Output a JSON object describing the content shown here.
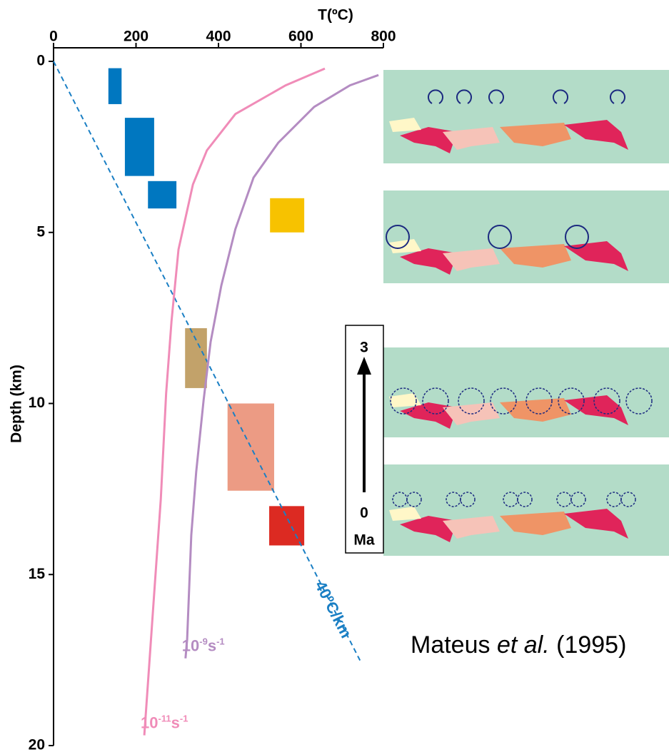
{
  "chart_data": {
    "type": "line",
    "xlabel": "T(ºC)",
    "ylabel": "Depth (km)",
    "xlim": [
      0,
      800
    ],
    "ylim": [
      0,
      20
    ],
    "xticks": [
      0,
      200,
      400,
      600,
      800
    ],
    "yticks": [
      0,
      5,
      10,
      15,
      20
    ],
    "boxes": [
      {
        "color": "#0077c0",
        "x": [
          133,
          165
        ],
        "y": [
          0.2,
          1.25
        ]
      },
      {
        "color": "#0077c0",
        "x": [
          173,
          244
        ],
        "y": [
          1.65,
          3.35
        ]
      },
      {
        "color": "#0077c0",
        "x": [
          229,
          298
        ],
        "y": [
          3.5,
          4.3
        ]
      },
      {
        "color": "#f7c200",
        "x": [
          525,
          608
        ],
        "y": [
          4.0,
          5.0
        ]
      },
      {
        "color": "#c2a26a",
        "x": [
          319,
          372
        ],
        "y": [
          7.8,
          9.55
        ]
      },
      {
        "color": "#ec9b84",
        "x": [
          422,
          535
        ],
        "y": [
          10.0,
          12.55
        ]
      },
      {
        "color": "#dc2a22",
        "x": [
          523,
          608
        ],
        "y": [
          13.0,
          14.15
        ]
      }
    ],
    "series": [
      {
        "label": {
          "base": "10",
          "exp": "-11",
          "unit": "s",
          "uexp": "-1"
        },
        "color": "#f08cb8",
        "x": [
          658,
          563,
          441,
          372,
          338,
          303,
          286,
          273,
          260,
          242,
          230,
          220
        ],
        "y": [
          0.21,
          0.7,
          1.54,
          2.6,
          3.6,
          5.5,
          7.6,
          9.7,
          12.8,
          15.9,
          18,
          19.7
        ]
      },
      {
        "label": {
          "base": "10",
          "exp": "-9",
          "unit": "s",
          "uexp": "-1"
        },
        "color": "#b48cc2",
        "x": [
          788,
          719,
          632,
          545,
          485,
          441,
          407,
          381,
          364,
          346,
          334,
          324,
          320
        ],
        "y": [
          0.4,
          0.7,
          1.33,
          2.38,
          3.4,
          4.9,
          6.55,
          8.2,
          9.9,
          12.0,
          13.85,
          16.9,
          17.45
        ]
      }
    ],
    "gradient": {
      "label": "40ºC/km",
      "color": "#1a7fc4",
      "x": [
        0,
        745
      ],
      "y": [
        0,
        17.55
      ]
    },
    "time_scale": {
      "top": 3,
      "bottom": 0,
      "unit": "Ma"
    },
    "caption": {
      "author": "Mateus",
      "etal": "et al.",
      "year": "(1995)"
    }
  }
}
